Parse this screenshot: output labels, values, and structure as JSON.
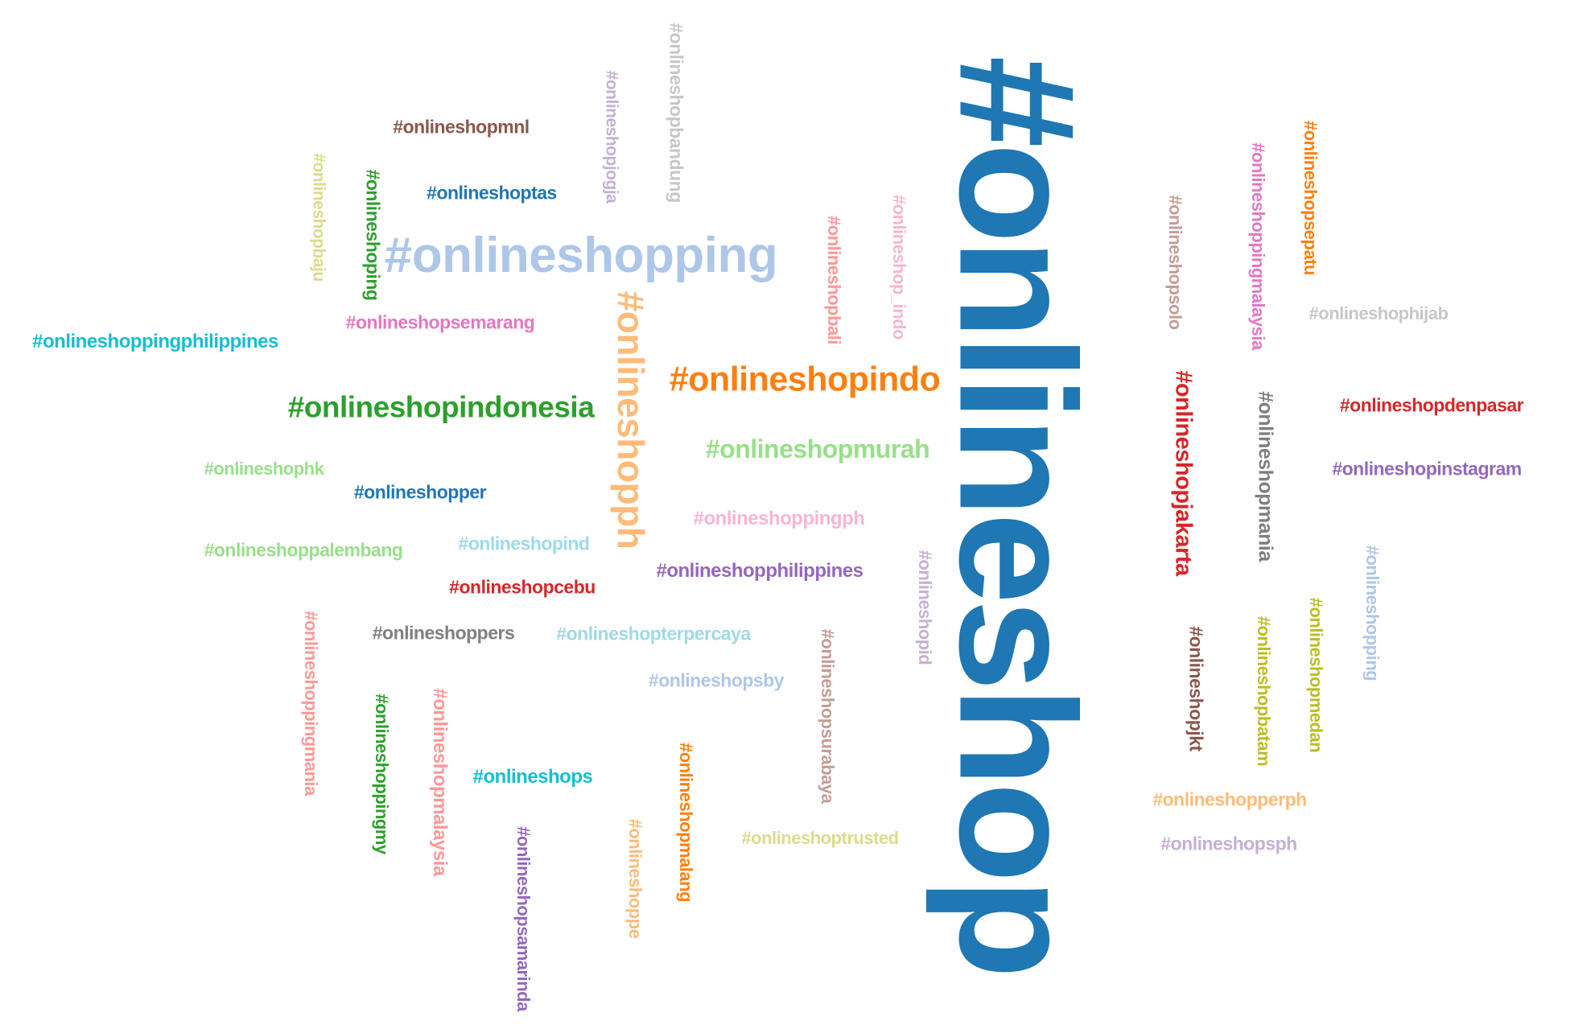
{
  "words": [
    {
      "text": "#onlineshop",
      "color": "#1f77b4"
    },
    {
      "text": "#onlineshopping",
      "color": "#aec7e8"
    },
    {
      "text": "#onlineshopindo",
      "color": "#ff7f0e"
    },
    {
      "text": "#onlineshopindonesia",
      "color": "#2ca02c"
    },
    {
      "text": "#onlineshopph",
      "color": "#ffbb78"
    },
    {
      "text": "#onlineshopmurah",
      "color": "#98df8a"
    },
    {
      "text": "#onlineshopjakarta",
      "color": "#d62728"
    },
    {
      "text": "#onlineshopmania",
      "color": "#7f7f7f"
    },
    {
      "text": "#onlineshopbandung",
      "color": "#c7c7c7"
    },
    {
      "text": "#onlineshopjogja",
      "color": "#c5b0d5"
    },
    {
      "text": "#onlineshopmnl",
      "color": "#8c564b"
    },
    {
      "text": "#onlineshoptas",
      "color": "#1f77b4"
    },
    {
      "text": "#onlineshopbaju",
      "color": "#dbdb8d"
    },
    {
      "text": "#onlineshoping",
      "color": "#2ca02c"
    },
    {
      "text": "#onlineshopsemarang",
      "color": "#e377c2"
    },
    {
      "text": "#onlineshoppingphilippines",
      "color": "#17becf"
    },
    {
      "text": "#onlineshop_indo",
      "color": "#f7b6d2"
    },
    {
      "text": "#onlineshopbali",
      "color": "#ff9896"
    },
    {
      "text": "#onlineshopsolo",
      "color": "#c49c94"
    },
    {
      "text": "#onlineshoppingmalaysia",
      "color": "#e377c2"
    },
    {
      "text": "#onlineshopsepatu",
      "color": "#ff7f0e"
    },
    {
      "text": "#onlineshophijab",
      "color": "#c7c7c7"
    },
    {
      "text": "#onlineshopdenpasar",
      "color": "#d62728"
    },
    {
      "text": "#onlineshopinstagram",
      "color": "#9467bd"
    },
    {
      "text": "#onlineshophk",
      "color": "#98df8a"
    },
    {
      "text": "#onlineshopper",
      "color": "#1f77b4"
    },
    {
      "text": "#onlineshoppingph",
      "color": "#f7b6d2"
    },
    {
      "text": "#onlineshoppalembang",
      "color": "#98df8a"
    },
    {
      "text": "#onlineshopind",
      "color": "#9edae5"
    },
    {
      "text": "#onlineshopphilippines",
      "color": "#9467bd"
    },
    {
      "text": "#onlineshopcebu",
      "color": "#d62728"
    },
    {
      "text": "#onlineshopid",
      "color": "#c5b0d5"
    },
    {
      "text": "#onlineshoppers",
      "color": "#7f7f7f"
    },
    {
      "text": "#onlineshopterpercaya",
      "color": "#9edae5"
    },
    {
      "text": "#onlineshopsby",
      "color": "#aec7e8"
    },
    {
      "text": "#onlineshoppingmania",
      "color": "#ff9896"
    },
    {
      "text": "#onlineshoppingmy",
      "color": "#2ca02c"
    },
    {
      "text": "#onlineshopmalaysia",
      "color": "#ff9896"
    },
    {
      "text": "#onlineshops",
      "color": "#17becf"
    },
    {
      "text": "#onlineshopsurabaya",
      "color": "#c49c94"
    },
    {
      "text": "#onlineshopjkt",
      "color": "#8c564b"
    },
    {
      "text": "#onlineshopbatam",
      "color": "#bcbd22"
    },
    {
      "text": "#onlineshopmedan",
      "color": "#bcbd22"
    },
    {
      "text": "#onlineshopping",
      "color": "#aec7e8"
    },
    {
      "text": "#onlineshopmalang",
      "color": "#ff7f0e"
    },
    {
      "text": "#onlineshopsamarinda",
      "color": "#9467bd"
    },
    {
      "text": "#onlineshoppe",
      "color": "#ffbb78"
    },
    {
      "text": "#onlineshoptrusted",
      "color": "#dbdb8d"
    },
    {
      "text": "#onlineshopperph",
      "color": "#ffbb78"
    },
    {
      "text": "#onlineshopsph",
      "color": "#c5b0d5"
    }
  ]
}
